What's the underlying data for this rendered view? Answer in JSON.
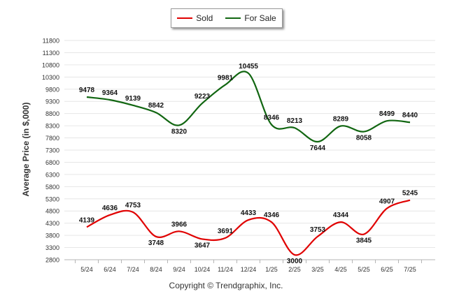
{
  "legend": {
    "items": [
      {
        "label": "Sold",
        "color": "#e00000"
      },
      {
        "label": "For Sale",
        "color": "#116611"
      }
    ]
  },
  "footer": {
    "copyright": "Copyright © Trendgraphix, Inc."
  },
  "chart_data": {
    "type": "line",
    "ylabel": "Average Price (in $,000)",
    "xlabel": "",
    "categories": [
      "5/24",
      "6/24",
      "7/24",
      "8/24",
      "9/24",
      "10/24",
      "11/24",
      "12/24",
      "1/25",
      "2/25",
      "3/25",
      "4/25",
      "5/25",
      "6/25",
      "7/25"
    ],
    "ylim": [
      2800,
      11800
    ],
    "yticks": [
      2800,
      3300,
      3800,
      4300,
      4800,
      5300,
      5800,
      6300,
      6800,
      7300,
      7800,
      8300,
      8800,
      9300,
      9800,
      10300,
      10800,
      11300,
      11800
    ],
    "grid": true,
    "legend_position": "top-center",
    "series": [
      {
        "name": "Sold",
        "color": "#e00000",
        "values": [
          4139,
          4636,
          4753,
          3748,
          3966,
          3647,
          3691,
          4433,
          4346,
          3000,
          3753,
          4344,
          3845,
          4907,
          5245
        ]
      },
      {
        "name": "For Sale",
        "color": "#116611",
        "values": [
          9478,
          9364,
          9139,
          8842,
          8320,
          9223,
          9981,
          10455,
          8346,
          8213,
          7644,
          8289,
          8058,
          8499,
          8440
        ]
      }
    ]
  }
}
